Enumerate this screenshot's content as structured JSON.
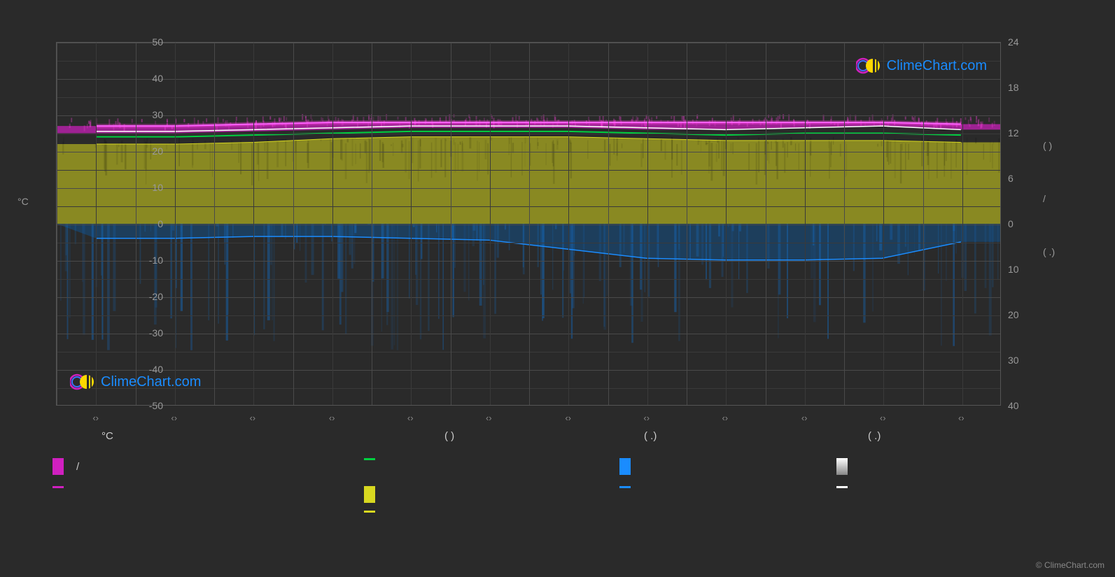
{
  "chart": {
    "type": "climate-chart",
    "background_color": "#2a2a2a",
    "plot_border_color": "#555",
    "grid_color": "#3a3a3a",
    "grid_color_major": "#4a4a4a",
    "y_left": {
      "title": "°C",
      "min": -50,
      "max": 50,
      "tick_step": 10,
      "ticks": [
        50,
        40,
        30,
        20,
        10,
        0,
        -10,
        -20,
        -30,
        -40,
        -50
      ],
      "minor_step": 5
    },
    "y_right": {
      "top_section": {
        "ticks": [
          24,
          18,
          12,
          6,
          0
        ],
        "title_glyphs": [
          "(    )"
        ]
      },
      "bottom_section": {
        "ticks": [
          10,
          20,
          30,
          40
        ],
        "title_glyphs": [
          "/",
          "(  .)"
        ]
      }
    },
    "x": {
      "months": 12,
      "tick_positions": [
        0.042,
        0.125,
        0.208,
        0.292,
        0.375,
        0.458,
        0.542,
        0.625,
        0.708,
        0.792,
        0.875,
        0.958
      ],
      "tick_label": "‹›"
    },
    "series": {
      "temp_max_band": {
        "color": "#d020c0",
        "glow_color": "#ff40e0",
        "upper": [
          27,
          27,
          27.5,
          28,
          28,
          28,
          28,
          28,
          28,
          28,
          28,
          27.5
        ],
        "lower": [
          25,
          25,
          25.5,
          26,
          26.5,
          26.5,
          26.5,
          26,
          26,
          26.5,
          27,
          26
        ],
        "line_width": 5
      },
      "temp_mean": {
        "color": "#00d040",
        "values": [
          24,
          24,
          24.5,
          25,
          25.5,
          25.5,
          25.5,
          25,
          24.5,
          25,
          25,
          24.5
        ],
        "line_width": 2
      },
      "temp_mean_white": {
        "color": "#ffffff",
        "values": [
          25.5,
          25.5,
          26,
          26.5,
          27,
          27,
          27,
          26.5,
          26,
          26.5,
          27,
          26
        ],
        "line_width": 1.5
      },
      "temp_min": {
        "color": "#d8d820",
        "upper": [
          22,
          22,
          22.5,
          23.5,
          24,
          24,
          24,
          23.5,
          23,
          23,
          23,
          22.5
        ],
        "lower": 0,
        "line_width": 1,
        "fill_color": "#aaaa20",
        "fill_opacity": 0.75
      },
      "precipitation": {
        "color": "#1a8cff",
        "bar_color": "#0a5ca8",
        "values": [
          -4,
          -4,
          -3.5,
          -3.5,
          -4,
          -4.5,
          -7,
          -9.5,
          -10,
          -10,
          -9.5,
          -5
        ],
        "fill_opacity": 0.4,
        "line_width": 1.5
      },
      "white_line_bottom": {
        "color": "#ffffff",
        "values": [
          0,
          0,
          0,
          0,
          0,
          0,
          0,
          0,
          0,
          0,
          0,
          0
        ],
        "line_width": 1
      }
    },
    "precip_spikes": {
      "count": 180,
      "color": "#1568b8",
      "max_depth": 35,
      "opacity_range": [
        0.1,
        0.5
      ]
    }
  },
  "logo": {
    "text": "ClimeChart.com",
    "ring_color": "#d020c0",
    "sphere_colors": [
      "#ffd700",
      "#4070ff"
    ]
  },
  "legend": {
    "header_items": [
      "°C",
      "(         )",
      "(   .)",
      "(   .)"
    ],
    "row1": [
      {
        "swatch_color": "#d020c0",
        "swatch_type": "block",
        "label": "/"
      },
      {
        "swatch_color": "#00d040",
        "swatch_type": "line",
        "label": ""
      },
      {
        "swatch_color": "#1a8cff",
        "swatch_type": "block",
        "label": ""
      },
      {
        "swatch_color": "#ffffff",
        "swatch_type": "block-gradient",
        "label": ""
      }
    ],
    "row2": [
      {
        "swatch_color": "#d020c0",
        "swatch_type": "line",
        "label": ""
      },
      {
        "swatch_color": "#d8d820",
        "swatch_type": "block",
        "label": ""
      },
      {
        "swatch_color": "#1a8cff",
        "swatch_type": "line",
        "label": ""
      },
      {
        "swatch_color": "#ffffff",
        "swatch_type": "line",
        "label": ""
      }
    ],
    "row3": [
      {
        "swatch_color": "",
        "swatch_type": "none",
        "label": ""
      },
      {
        "swatch_color": "#d8d820",
        "swatch_type": "line",
        "label": ""
      },
      {
        "swatch_color": "",
        "swatch_type": "none",
        "label": ""
      },
      {
        "swatch_color": "",
        "swatch_type": "none",
        "label": ""
      }
    ]
  },
  "copyright": "© ClimeChart.com"
}
